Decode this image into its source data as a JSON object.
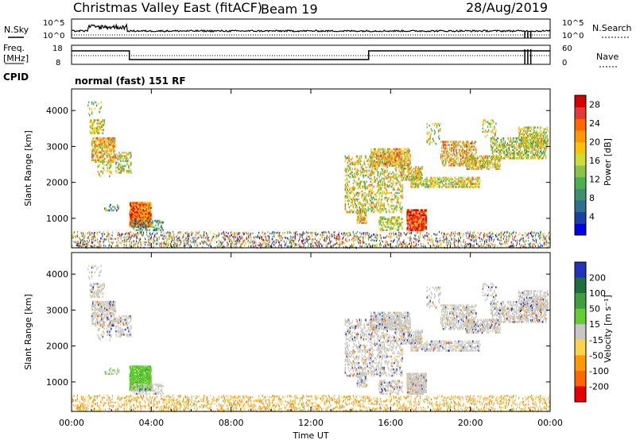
{
  "header": {
    "title": "Christmas Valley East (fitACF)",
    "beam": "Beam 19",
    "date": "28/Aug/2019"
  },
  "strip_nsky": {
    "label_left": "N.Sky",
    "label_right": "N.Search",
    "left_ticks": [
      "10^5",
      "10^0"
    ],
    "right_ticks": [
      "10^5",
      "10^0"
    ]
  },
  "strip_freq": {
    "label_left_1": "Freq.",
    "label_left_2": "[MHz]",
    "label_right": "Nave",
    "left_ticks": [
      "18",
      "8"
    ],
    "right_ticks": [
      "60",
      "0"
    ]
  },
  "cpid": {
    "label": "CPID",
    "value": "normal (fast) 151 RF"
  },
  "chart_data": [
    {
      "type": "heatmap",
      "panel": "power",
      "xlabel": "Time UT",
      "ylabel": "Slant Range [km]",
      "x_ticks": [
        "00:00",
        "04:00",
        "08:00",
        "12:00",
        "16:00",
        "20:00",
        "00:00"
      ],
      "y_ticks": [
        "1000",
        "2000",
        "3000",
        "4000"
      ],
      "xlim_hours": [
        0,
        24
      ],
      "ylim_km": [
        180,
        4600
      ],
      "colorbar_label": "Power [dB]",
      "colorbar_ticks": [
        "4",
        "8",
        "12",
        "16",
        "20",
        "24",
        "28"
      ],
      "colorbar_range": [
        0,
        30
      ],
      "colors": [
        "#0000dd",
        "#1a3fa8",
        "#2e6e8e",
        "#3e8f70",
        "#4caf50",
        "#8bc34a",
        "#cddc39",
        "#ffc107",
        "#ff9800",
        "#ff6600",
        "#e53935",
        "#d50000"
      ]
    },
    {
      "type": "heatmap",
      "panel": "velocity",
      "xlabel": "Time UT",
      "ylabel": "Slant Range [km]",
      "x_ticks": [
        "00:00",
        "04:00",
        "08:00",
        "12:00",
        "16:00",
        "20:00",
        "00:00"
      ],
      "y_ticks": [
        "1000",
        "2000",
        "3000",
        "4000"
      ],
      "xlim_hours": [
        0,
        24
      ],
      "ylim_km": [
        180,
        4600
      ],
      "colorbar_label": "Velocity [m s⁻¹]",
      "colorbar_ticks": [
        "200",
        "100",
        "50",
        "15",
        "-15",
        "-50",
        "-100",
        "-200"
      ],
      "colorbar_range": [
        -250,
        250
      ],
      "colors": [
        "#2233bb",
        "#1e6e3e",
        "#3f9f3f",
        "#66cc33",
        "#c8c8c0",
        "#ffd24d",
        "#ff9900",
        "#ff6600",
        "#e60000"
      ]
    }
  ]
}
